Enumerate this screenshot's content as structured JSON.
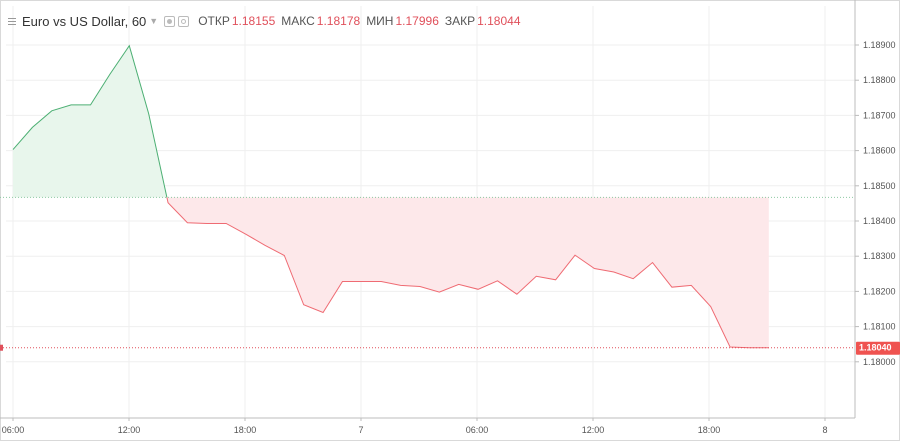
{
  "header": {
    "symbol": "Euro vs US Dollar, 60",
    "open_label": "ОТКР",
    "open_value": "1.18155",
    "high_label": "МАКС",
    "high_value": "1.18178",
    "low_label": "МИН",
    "low_value": "1.17996",
    "close_label": "ЗАКР",
    "close_value": "1.18044",
    "value_color": "#e0505b"
  },
  "chart_data": {
    "type": "area",
    "title": "Euro vs US Dollar, 60",
    "xlabel": "",
    "ylabel": "",
    "ylim": [
      1.17975,
      1.18975
    ],
    "baseline": 1.18467,
    "last_price": 1.1804,
    "last_price_label": "1.18040",
    "x_ticks": [
      "06:00",
      "12:00",
      "18:00",
      "7",
      "06:00",
      "12:00",
      "18:00",
      "8"
    ],
    "y_ticks": [
      "1.18900",
      "1.18800",
      "1.18700",
      "1.18600",
      "1.18500",
      "1.18400",
      "1.18300",
      "1.18200",
      "1.18100",
      "1.18000"
    ],
    "y_tick_values": [
      1.189,
      1.188,
      1.187,
      1.186,
      1.185,
      1.184,
      1.183,
      1.182,
      1.181,
      1.18
    ],
    "x": [
      0,
      1,
      2,
      3,
      4,
      5,
      6,
      7,
      8,
      9,
      10,
      11,
      12,
      13,
      14,
      15,
      16,
      17,
      18,
      19,
      20,
      21,
      22,
      23,
      24,
      25,
      26,
      27,
      28,
      29,
      30,
      31,
      32,
      33,
      34,
      35,
      36,
      37,
      38,
      39
    ],
    "values": [
      1.18603,
      1.18666,
      1.18713,
      1.1873,
      1.1873,
      1.18817,
      1.18898,
      1.18705,
      1.18452,
      1.18395,
      1.18393,
      1.18393,
      1.18363,
      1.18331,
      1.18302,
      1.18162,
      1.1814,
      1.18228,
      1.18228,
      1.18228,
      1.18217,
      1.18214,
      1.18198,
      1.1822,
      1.18206,
      1.1823,
      1.18192,
      1.18243,
      1.18233,
      1.18303,
      1.18265,
      1.18255,
      1.18236,
      1.18282,
      1.18212,
      1.18217,
      1.18157,
      1.18042,
      1.1804,
      1.1804
    ],
    "colors": {
      "up": "#4caf73",
      "up_fill": "#e8f6ec",
      "down": "#ef6b73",
      "down_fill": "#fde8ea",
      "grid": "#efefef"
    },
    "grid": true
  }
}
